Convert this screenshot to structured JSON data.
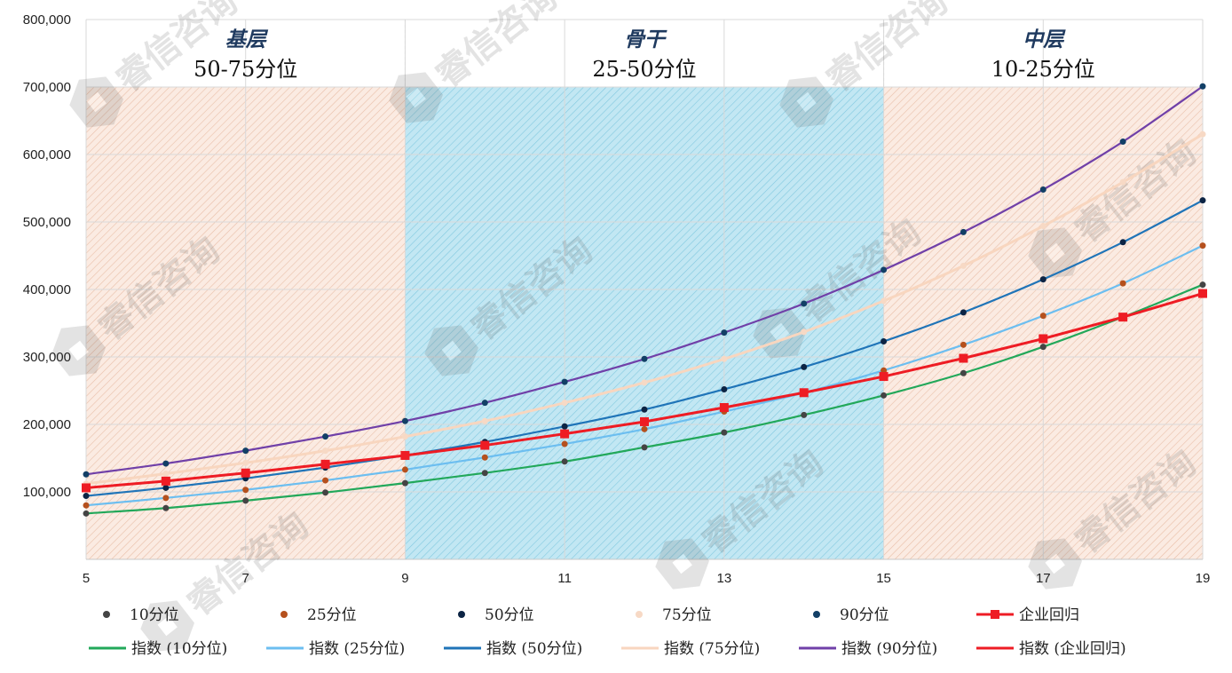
{
  "chart_data": {
    "type": "line",
    "xlim": [
      5,
      19
    ],
    "ylim": [
      0,
      800000
    ],
    "x_ticks": [
      "5",
      "7",
      "9",
      "11",
      "13",
      "15",
      "17",
      "19"
    ],
    "y_ticks": [
      "800,000",
      "700,000",
      "600,000",
      "500,000",
      "400,000",
      "300,000",
      "200,000",
      "100,000"
    ],
    "grid": true,
    "legend_position": "bottom",
    "zones": [
      {
        "name": "基层",
        "range": "50-75分位",
        "x_from": 5,
        "x_to": 9,
        "color": "#f3c9b3"
      },
      {
        "name": "骨干",
        "range": "25-50分位",
        "x_from": 9,
        "x_to": 15,
        "color": "#7fd0e8"
      },
      {
        "name": "中层",
        "range": "10-25分位",
        "x_from": 15,
        "x_to": 19,
        "color": "#f3c9b3"
      }
    ],
    "x": [
      5,
      6,
      7,
      8,
      9,
      10,
      11,
      12,
      13,
      14,
      15,
      16,
      17,
      18,
      19
    ],
    "series": [
      {
        "name": "10分位",
        "trend_name": "指数 (10分位)",
        "marker_color": "#444444",
        "line_color": "#22a85a",
        "values": [
          68000,
          76000,
          87000,
          99000,
          113000,
          128000,
          145000,
          166000,
          188000,
          214000,
          243000,
          276000,
          315000,
          359000,
          407000
        ]
      },
      {
        "name": "25分位",
        "trend_name": "指数 (25分位)",
        "marker_color": "#b5501d",
        "line_color": "#6cbef0",
        "values": [
          80000,
          91000,
          103000,
          117000,
          133000,
          151000,
          171000,
          193000,
          219000,
          247000,
          280000,
          318000,
          361000,
          409000,
          465000
        ]
      },
      {
        "name": "50分位",
        "trend_name": "指数 (50分位)",
        "marker_color": "#0c2444",
        "line_color": "#1f74b8",
        "values": [
          94000,
          106000,
          120000,
          136000,
          154000,
          174000,
          197000,
          222000,
          252000,
          285000,
          323000,
          366000,
          415000,
          470000,
          532000
        ]
      },
      {
        "name": "75分位",
        "trend_name": "指数 (75分位)",
        "marker_color": "#f7d9c5",
        "line_color": "#f8d6bf",
        "values": [
          112000,
          127000,
          143000,
          161000,
          182000,
          205000,
          232000,
          262000,
          297000,
          337000,
          383000,
          435000,
          494000,
          559000,
          630000
        ]
      },
      {
        "name": "90分位",
        "trend_name": "指数 (90分位)",
        "marker_color": "#123f66",
        "line_color": "#7040a8",
        "values": [
          126000,
          142000,
          161000,
          182000,
          205000,
          232000,
          263000,
          297000,
          336000,
          379000,
          429000,
          485000,
          548000,
          619000,
          701000
        ]
      },
      {
        "name": "企业回归",
        "trend_name": "指数 (企业回归)",
        "marker_color": "#ee1c24",
        "line_color": "#ee1c24",
        "values": [
          106000,
          116000,
          128000,
          141000,
          154000,
          169000,
          186000,
          204000,
          225000,
          247000,
          271000,
          298000,
          327000,
          359000,
          394000
        ]
      }
    ]
  },
  "watermark": "睿信咨询"
}
